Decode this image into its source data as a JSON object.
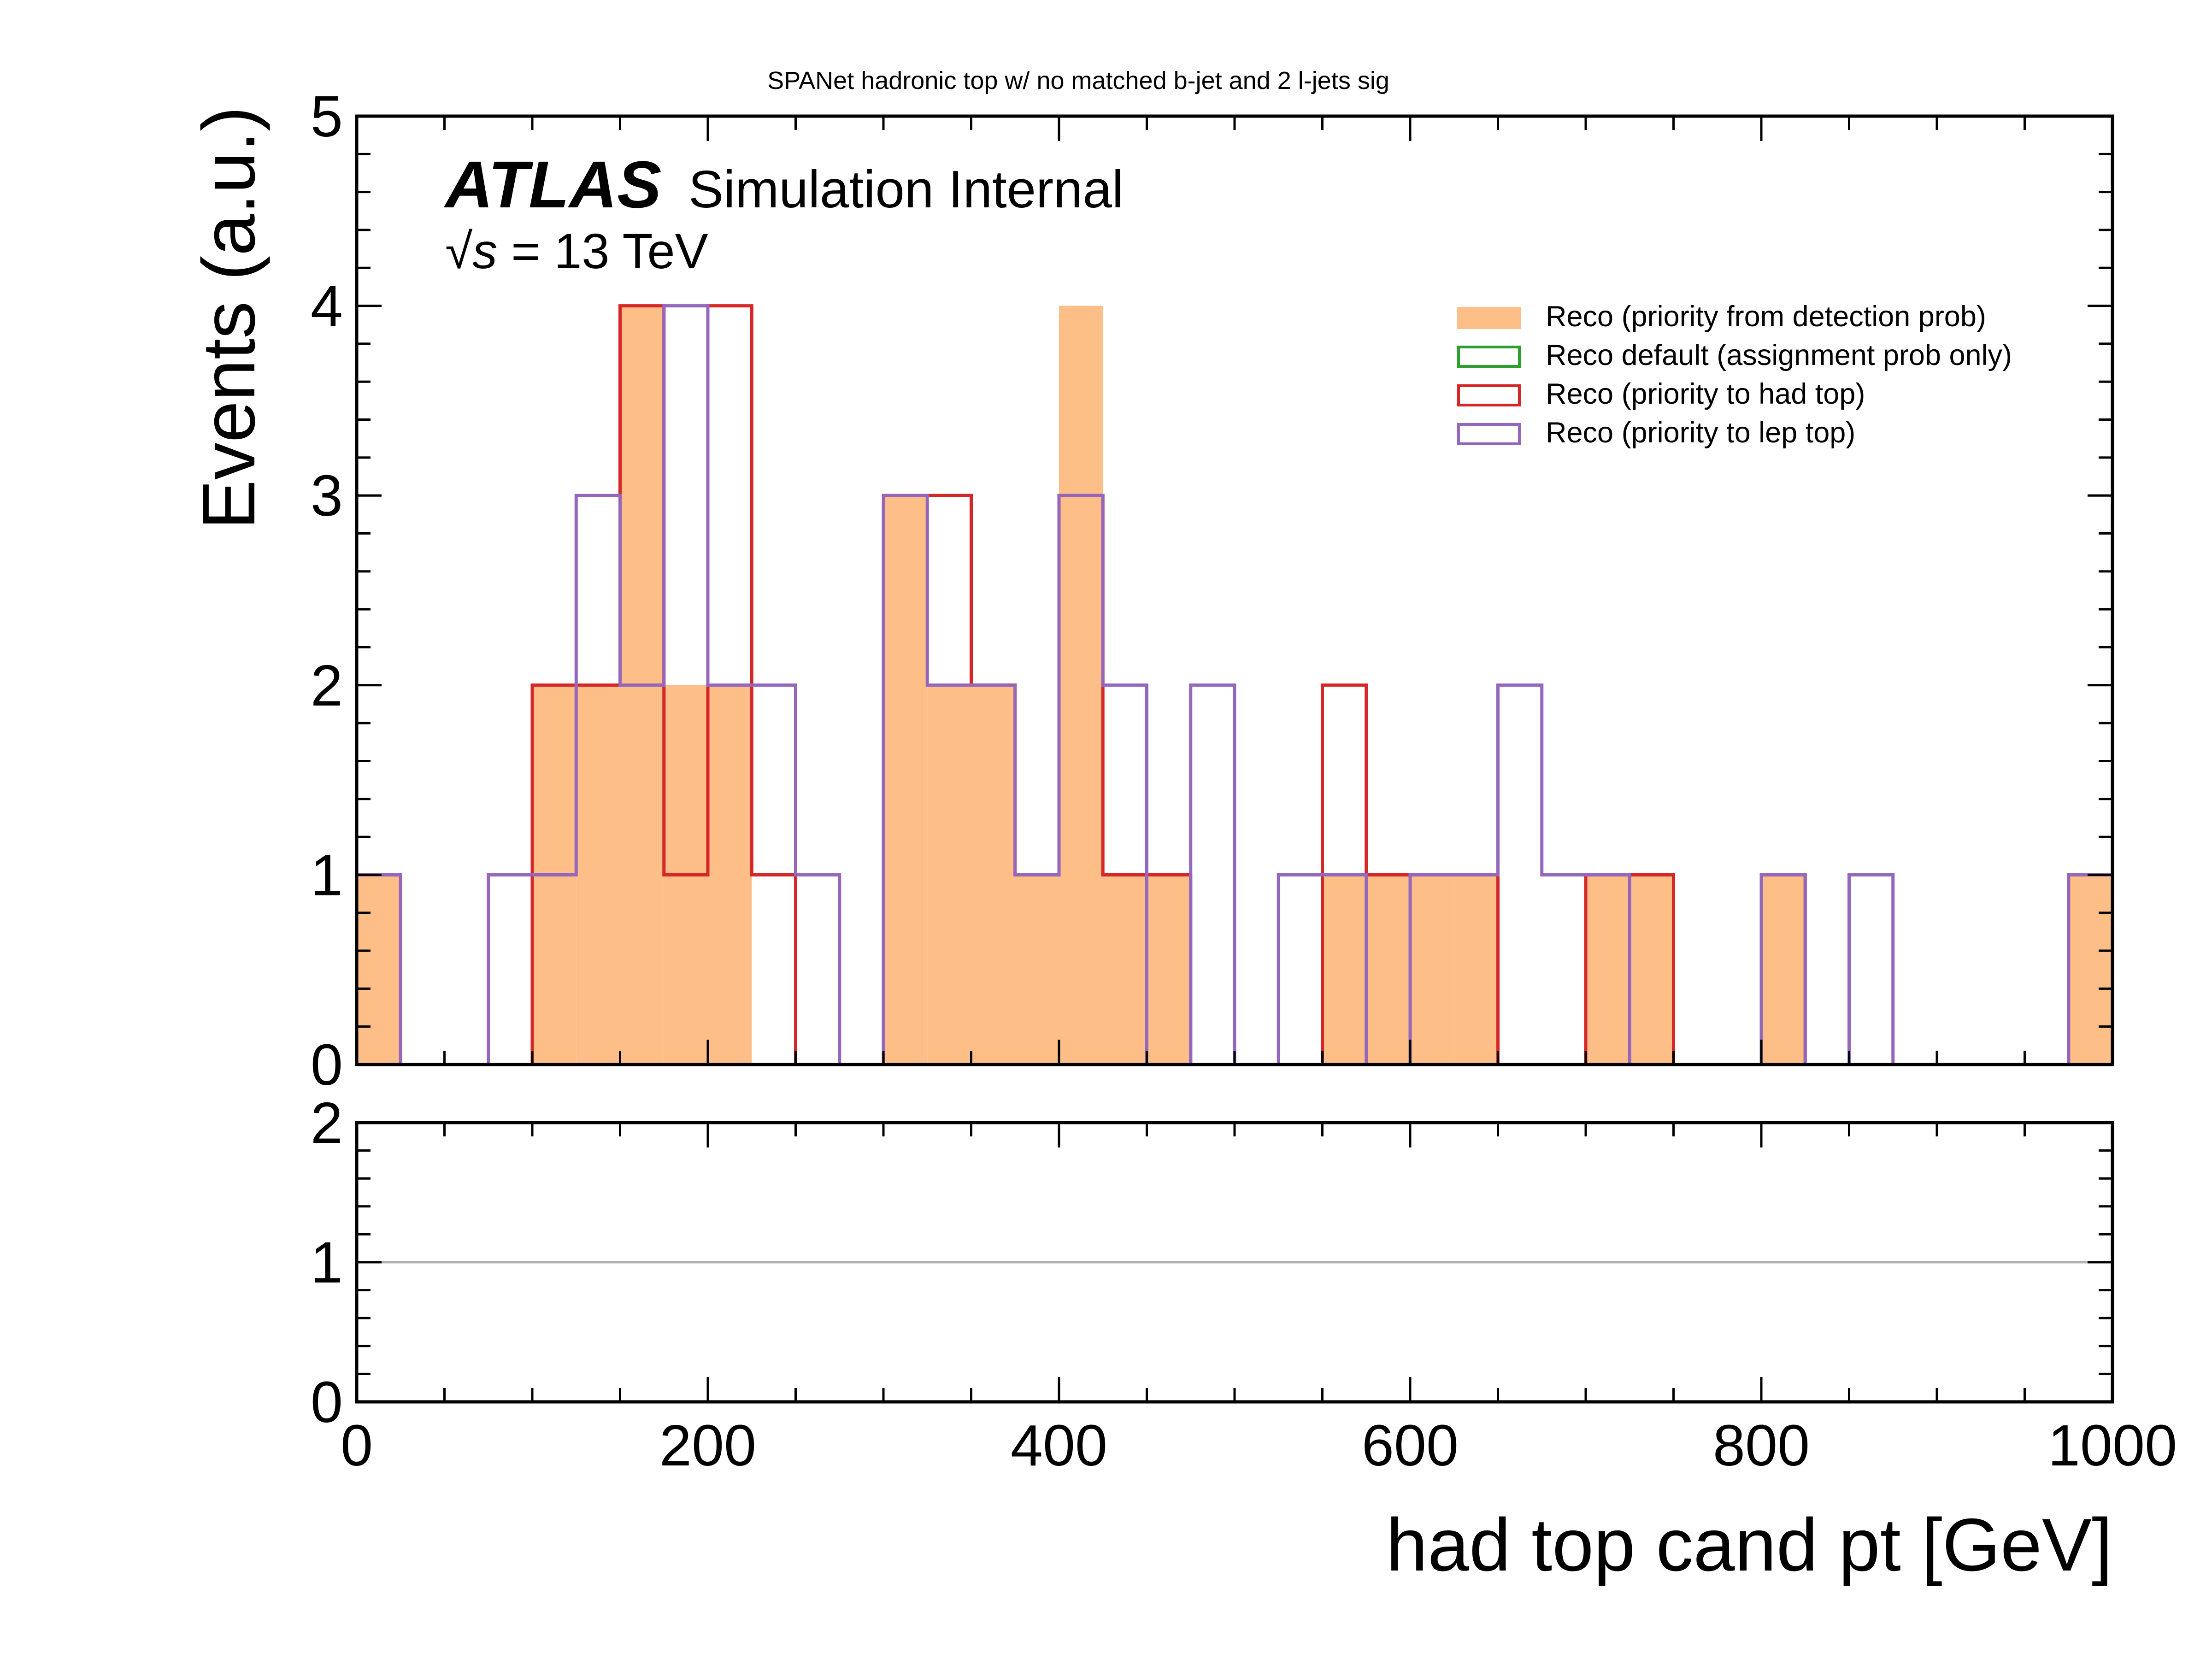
{
  "chart_data": {
    "type": "histogram",
    "title": "SPANet hadronic top w/ no matched b-jet and 2 l-jets sig",
    "experiment_label": "ATLAS",
    "experiment_sublabel": "Simulation Internal",
    "energy_label_sqrt": "√s",
    "energy_label_rest": " = 13 TeV",
    "xlabel": "had top cand pt [GeV]",
    "ylabel": "Events (a.u.)",
    "xlim": [
      0,
      1000
    ],
    "ylim": [
      0,
      5
    ],
    "ratio_ylim": [
      0,
      2
    ],
    "ratio_reference": 1,
    "legend_position": "upper-right",
    "xticks": [
      "0",
      "200",
      "400",
      "600",
      "800",
      "1000"
    ],
    "yticks": [
      "0",
      "1",
      "2",
      "3",
      "4",
      "5"
    ],
    "ratio_yticks": [
      "0",
      "1",
      "2"
    ],
    "bin_width": 25,
    "bin_edges_start": 0,
    "series": [
      {
        "name": "Reco (priority from detection prob)",
        "style": "filled",
        "color": "#fdbf87",
        "values": [
          1,
          0,
          0,
          0,
          2,
          2,
          4,
          2,
          2,
          0,
          0,
          0,
          3,
          2,
          2,
          1,
          4,
          1,
          1,
          0,
          0,
          0,
          1,
          1,
          1,
          1,
          0,
          0,
          1,
          1,
          0,
          0,
          1,
          0,
          0,
          0,
          0,
          0,
          0,
          1
        ]
      },
      {
        "name": "Reco default (assignment prob only)",
        "style": "step",
        "color": "#2ca02c",
        "values": []
      },
      {
        "name": "Reco (priority to had top)",
        "style": "step",
        "color": "#d62728",
        "values": [
          1,
          0,
          0,
          0,
          2,
          2,
          4,
          1,
          4,
          1,
          0,
          0,
          3,
          3,
          2,
          1,
          3,
          1,
          1,
          0,
          0,
          0,
          2,
          1,
          1,
          1,
          0,
          0,
          1,
          1,
          0,
          0,
          1,
          0,
          0,
          0,
          0,
          0,
          0,
          1
        ]
      },
      {
        "name": "Reco (priority to lep top)",
        "style": "step",
        "color": "#9467bd",
        "values": [
          1,
          0,
          0,
          1,
          1,
          3,
          2,
          4,
          2,
          2,
          1,
          0,
          3,
          2,
          2,
          1,
          3,
          2,
          0,
          2,
          0,
          1,
          1,
          0,
          1,
          1,
          2,
          1,
          1,
          0,
          0,
          0,
          1,
          0,
          1,
          0,
          0,
          0,
          0,
          1
        ]
      }
    ]
  }
}
